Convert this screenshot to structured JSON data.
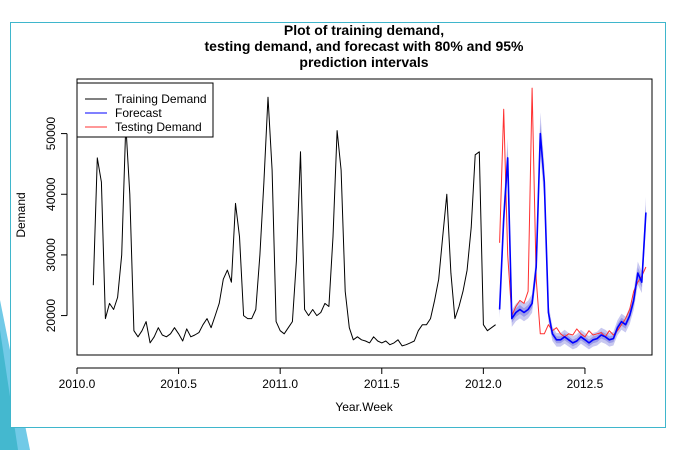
{
  "chart_data": {
    "type": "line",
    "title_lines": [
      "Plot of training demand,",
      "testing demand, and forecast with 80% and 95%",
      "prediction intervals"
    ],
    "xlabel": "Year.Week",
    "ylabel": "Demand",
    "xlim": [
      2010.0,
      2012.83
    ],
    "ylim": [
      13500,
      59000
    ],
    "x_ticks": [
      {
        "value": 2010.0,
        "label": "2010.0"
      },
      {
        "value": 2010.5,
        "label": "2010.5"
      },
      {
        "value": 2011.0,
        "label": "2011.0"
      },
      {
        "value": 2011.5,
        "label": "2011.5"
      },
      {
        "value": 2012.0,
        "label": "2012.0"
      },
      {
        "value": 2012.5,
        "label": "2012.5"
      }
    ],
    "y_ticks": [
      {
        "value": 20000,
        "label": "20000"
      },
      {
        "value": 30000,
        "label": "30000"
      },
      {
        "value": 40000,
        "label": "40000"
      },
      {
        "value": 50000,
        "label": "50000"
      }
    ],
    "grid": false,
    "legend": {
      "position": "top-left",
      "entries": [
        {
          "label": "Training Demand",
          "color": "#000000"
        },
        {
          "label": "Forecast",
          "color": "#0000ff"
        },
        {
          "label": "Testing Demand",
          "color": "#ff3030"
        }
      ]
    },
    "series": [
      {
        "name": "Training Demand",
        "color": "#000000",
        "points": [
          [
            2010.08,
            25000
          ],
          [
            2010.1,
            46000
          ],
          [
            2010.12,
            42000
          ],
          [
            2010.14,
            19500
          ],
          [
            2010.16,
            22000
          ],
          [
            2010.18,
            21000
          ],
          [
            2010.2,
            23000
          ],
          [
            2010.22,
            30000
          ],
          [
            2010.24,
            51500
          ],
          [
            2010.26,
            40000
          ],
          [
            2010.28,
            17500
          ],
          [
            2010.3,
            16500
          ],
          [
            2010.32,
            17500
          ],
          [
            2010.34,
            19000
          ],
          [
            2010.36,
            15500
          ],
          [
            2010.38,
            16500
          ],
          [
            2010.4,
            18000
          ],
          [
            2010.42,
            16800
          ],
          [
            2010.44,
            16500
          ],
          [
            2010.46,
            17000
          ],
          [
            2010.48,
            18000
          ],
          [
            2010.5,
            17000
          ],
          [
            2010.52,
            15800
          ],
          [
            2010.54,
            17800
          ],
          [
            2010.56,
            16500
          ],
          [
            2010.58,
            16800
          ],
          [
            2010.6,
            17200
          ],
          [
            2010.62,
            18500
          ],
          [
            2010.64,
            19500
          ],
          [
            2010.66,
            18000
          ],
          [
            2010.68,
            20000
          ],
          [
            2010.7,
            22000
          ],
          [
            2010.72,
            26000
          ],
          [
            2010.74,
            27500
          ],
          [
            2010.76,
            25500
          ],
          [
            2010.78,
            38500
          ],
          [
            2010.8,
            33000
          ],
          [
            2010.82,
            20000
          ],
          [
            2010.84,
            19500
          ],
          [
            2010.86,
            19500
          ],
          [
            2010.88,
            21000
          ],
          [
            2010.9,
            30000
          ],
          [
            2010.92,
            42000
          ],
          [
            2010.94,
            56000
          ],
          [
            2010.96,
            44000
          ],
          [
            2010.98,
            19000
          ],
          [
            2011.0,
            17500
          ],
          [
            2011.02,
            17000
          ],
          [
            2011.04,
            18000
          ],
          [
            2011.06,
            19000
          ],
          [
            2011.08,
            29000
          ],
          [
            2011.1,
            47000
          ],
          [
            2011.12,
            21000
          ],
          [
            2011.14,
            20000
          ],
          [
            2011.16,
            21000
          ],
          [
            2011.18,
            20000
          ],
          [
            2011.2,
            20500
          ],
          [
            2011.22,
            22000
          ],
          [
            2011.24,
            21500
          ],
          [
            2011.26,
            33000
          ],
          [
            2011.28,
            50500
          ],
          [
            2011.3,
            44000
          ],
          [
            2011.32,
            24000
          ],
          [
            2011.34,
            18000
          ],
          [
            2011.36,
            16000
          ],
          [
            2011.38,
            16500
          ],
          [
            2011.4,
            16000
          ],
          [
            2011.42,
            15800
          ],
          [
            2011.44,
            15500
          ],
          [
            2011.46,
            16500
          ],
          [
            2011.48,
            15800
          ],
          [
            2011.5,
            15500
          ],
          [
            2011.52,
            15800
          ],
          [
            2011.54,
            15200
          ],
          [
            2011.56,
            15500
          ],
          [
            2011.58,
            16000
          ],
          [
            2011.6,
            15000
          ],
          [
            2011.62,
            15200
          ],
          [
            2011.64,
            15500
          ],
          [
            2011.66,
            15800
          ],
          [
            2011.68,
            17500
          ],
          [
            2011.7,
            18500
          ],
          [
            2011.72,
            18500
          ],
          [
            2011.74,
            19500
          ],
          [
            2011.76,
            22500
          ],
          [
            2011.78,
            26000
          ],
          [
            2011.8,
            33000
          ],
          [
            2011.82,
            40000
          ],
          [
            2011.84,
            27000
          ],
          [
            2011.86,
            19500
          ],
          [
            2011.88,
            21500
          ],
          [
            2011.9,
            24000
          ],
          [
            2011.92,
            27500
          ],
          [
            2011.94,
            34500
          ],
          [
            2011.96,
            46500
          ],
          [
            2011.98,
            47000
          ],
          [
            2012.0,
            18500
          ],
          [
            2012.02,
            17500
          ],
          [
            2012.04,
            18000
          ],
          [
            2012.06,
            18500
          ]
        ]
      },
      {
        "name": "Forecast",
        "color": "#0000ff",
        "points": [
          [
            2012.08,
            21000
          ],
          [
            2012.1,
            36000
          ],
          [
            2012.12,
            46000
          ],
          [
            2012.14,
            19500
          ],
          [
            2012.16,
            20500
          ],
          [
            2012.18,
            21000
          ],
          [
            2012.2,
            20500
          ],
          [
            2012.22,
            21000
          ],
          [
            2012.24,
            22000
          ],
          [
            2012.26,
            28000
          ],
          [
            2012.28,
            50000
          ],
          [
            2012.3,
            42000
          ],
          [
            2012.32,
            20500
          ],
          [
            2012.34,
            17000
          ],
          [
            2012.36,
            16000
          ],
          [
            2012.38,
            16000
          ],
          [
            2012.4,
            16500
          ],
          [
            2012.42,
            16000
          ],
          [
            2012.44,
            15500
          ],
          [
            2012.46,
            15800
          ],
          [
            2012.48,
            16500
          ],
          [
            2012.5,
            16000
          ],
          [
            2012.52,
            15500
          ],
          [
            2012.54,
            16000
          ],
          [
            2012.56,
            16200
          ],
          [
            2012.58,
            16800
          ],
          [
            2012.6,
            16500
          ],
          [
            2012.62,
            16000
          ],
          [
            2012.64,
            16200
          ],
          [
            2012.66,
            18000
          ],
          [
            2012.68,
            19000
          ],
          [
            2012.7,
            18500
          ],
          [
            2012.72,
            20000
          ],
          [
            2012.74,
            22500
          ],
          [
            2012.76,
            27000
          ],
          [
            2012.78,
            25500
          ],
          [
            2012.8,
            37000
          ]
        ]
      },
      {
        "name": "Testing Demand",
        "color": "#ff3030",
        "points": [
          [
            2012.08,
            32000
          ],
          [
            2012.1,
            54000
          ],
          [
            2012.12,
            30000
          ],
          [
            2012.14,
            20000
          ],
          [
            2012.16,
            21500
          ],
          [
            2012.18,
            22500
          ],
          [
            2012.2,
            22000
          ],
          [
            2012.22,
            24000
          ],
          [
            2012.24,
            57500
          ],
          [
            2012.26,
            26000
          ],
          [
            2012.28,
            17000
          ],
          [
            2012.3,
            17000
          ],
          [
            2012.32,
            18500
          ],
          [
            2012.34,
            17500
          ],
          [
            2012.36,
            18000
          ],
          [
            2012.38,
            17000
          ],
          [
            2012.4,
            16500
          ],
          [
            2012.42,
            17000
          ],
          [
            2012.44,
            16800
          ],
          [
            2012.46,
            17800
          ],
          [
            2012.48,
            17000
          ],
          [
            2012.5,
            16500
          ],
          [
            2012.52,
            17500
          ],
          [
            2012.54,
            16800
          ],
          [
            2012.56,
            17000
          ],
          [
            2012.58,
            17200
          ],
          [
            2012.6,
            16500
          ],
          [
            2012.62,
            17500
          ],
          [
            2012.64,
            16800
          ],
          [
            2012.66,
            17500
          ],
          [
            2012.68,
            18500
          ],
          [
            2012.7,
            19500
          ],
          [
            2012.72,
            21000
          ],
          [
            2012.74,
            24000
          ],
          [
            2012.76,
            25500
          ],
          [
            2012.78,
            26500
          ],
          [
            2012.8,
            28000
          ]
        ]
      }
    ],
    "interval_colors": {
      "ci95": "#c8c8f0",
      "ci80": "#9c9ce8"
    }
  }
}
